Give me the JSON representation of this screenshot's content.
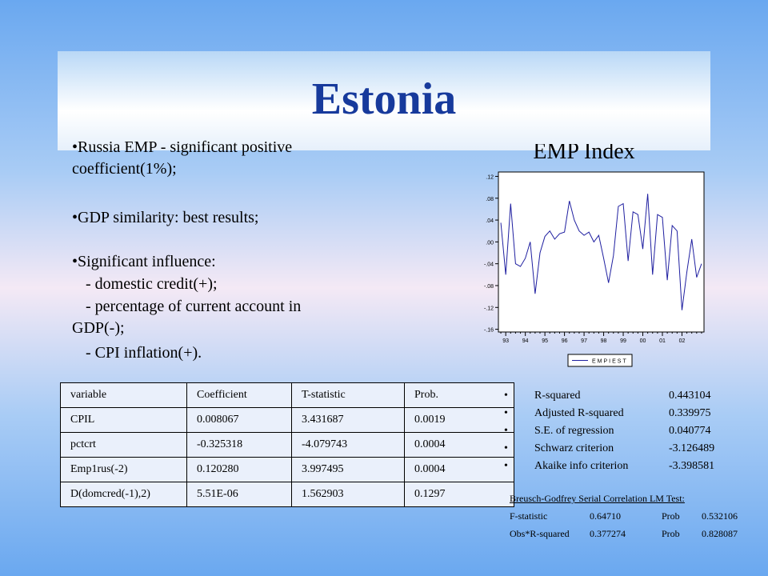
{
  "title": "Estonia",
  "bullets": [
    "Russia EMP - significant positive coefficient(1%);",
    "GDP similarity: best results;",
    "Significant influence:"
  ],
  "sub_items": [
    "- domestic credit(+);",
    "- percentage of current account in GDP(-);",
    "- CPI inflation(+)."
  ],
  "table": {
    "header": [
      "variable",
      "Coefficient",
      "T-statistic",
      "Prob."
    ],
    "rows": [
      [
        "CPIL",
        "0.008067",
        "3.431687",
        "0.0019"
      ],
      [
        "pctcrt",
        "-0.325318",
        "-4.079743",
        "0.0004"
      ],
      [
        "Emp1rus(-2)",
        "0.120280",
        "3.997495",
        "0.0004"
      ],
      [
        "D(domcred(-1),2)",
        "5.51E-06",
        "1.562903",
        "0.1297"
      ]
    ]
  },
  "stats": [
    {
      "label": "R-squared",
      "value": "0.443104"
    },
    {
      "label": "Adjusted R-squared",
      "value": "0.339975"
    },
    {
      "label": "S.E. of regression",
      "value": "0.040774"
    },
    {
      "label": "Schwarz criterion",
      "value": "-3.126489"
    },
    {
      "label": "Akaike info criterion",
      "value": "-3.398581"
    }
  ],
  "test": {
    "title": "Breusch-Godfrey Serial Correlation LM Test:",
    "rows": [
      [
        "F-statistic",
        "0.64710",
        "Prob",
        "0.532106"
      ],
      [
        "Obs*R-squared",
        "0.377274",
        "Prob",
        "0.828087"
      ]
    ]
  },
  "chart_data": {
    "type": "line",
    "title": "EMP Index",
    "categories": [
      null,
      "93",
      null,
      null,
      null,
      "94",
      null,
      null,
      null,
      "95",
      null,
      null,
      null,
      "96",
      null,
      null,
      null,
      "97",
      null,
      null,
      null,
      "98",
      null,
      null,
      null,
      "99",
      null,
      null,
      null,
      "00",
      null,
      null,
      null,
      "01",
      null,
      null,
      null,
      "02",
      null,
      null,
      null,
      null
    ],
    "series": [
      {
        "name": "EMPIEST",
        "color": "#1f1fa0",
        "values": [
          0.035,
          -0.06,
          0.07,
          -0.04,
          -0.045,
          -0.03,
          0.0,
          -0.095,
          -0.02,
          0.01,
          0.02,
          0.005,
          0.015,
          0.018,
          0.075,
          0.04,
          0.02,
          0.012,
          0.018,
          0.0,
          0.012,
          -0.03,
          -0.075,
          -0.025,
          0.065,
          0.07,
          -0.035,
          0.055,
          0.05,
          -0.013,
          0.088,
          -0.06,
          0.05,
          0.045,
          -0.07,
          0.03,
          0.02,
          -0.125,
          -0.055,
          0.005,
          -0.065,
          -0.04
        ]
      }
    ],
    "ylim": [
      -0.165,
      0.128
    ],
    "yticks": [
      {
        "value": 0.12,
        "label": ".12"
      },
      {
        "value": 0.08,
        "label": ".08"
      },
      {
        "value": 0.04,
        "label": ".04"
      },
      {
        "value": 0.0,
        "label": ".00"
      },
      {
        "value": -0.04,
        "label": "-.04"
      },
      {
        "value": -0.08,
        "label": "-.08"
      },
      {
        "value": -0.12,
        "label": "-.12"
      },
      {
        "value": -0.16,
        "label": "-.16"
      }
    ]
  }
}
